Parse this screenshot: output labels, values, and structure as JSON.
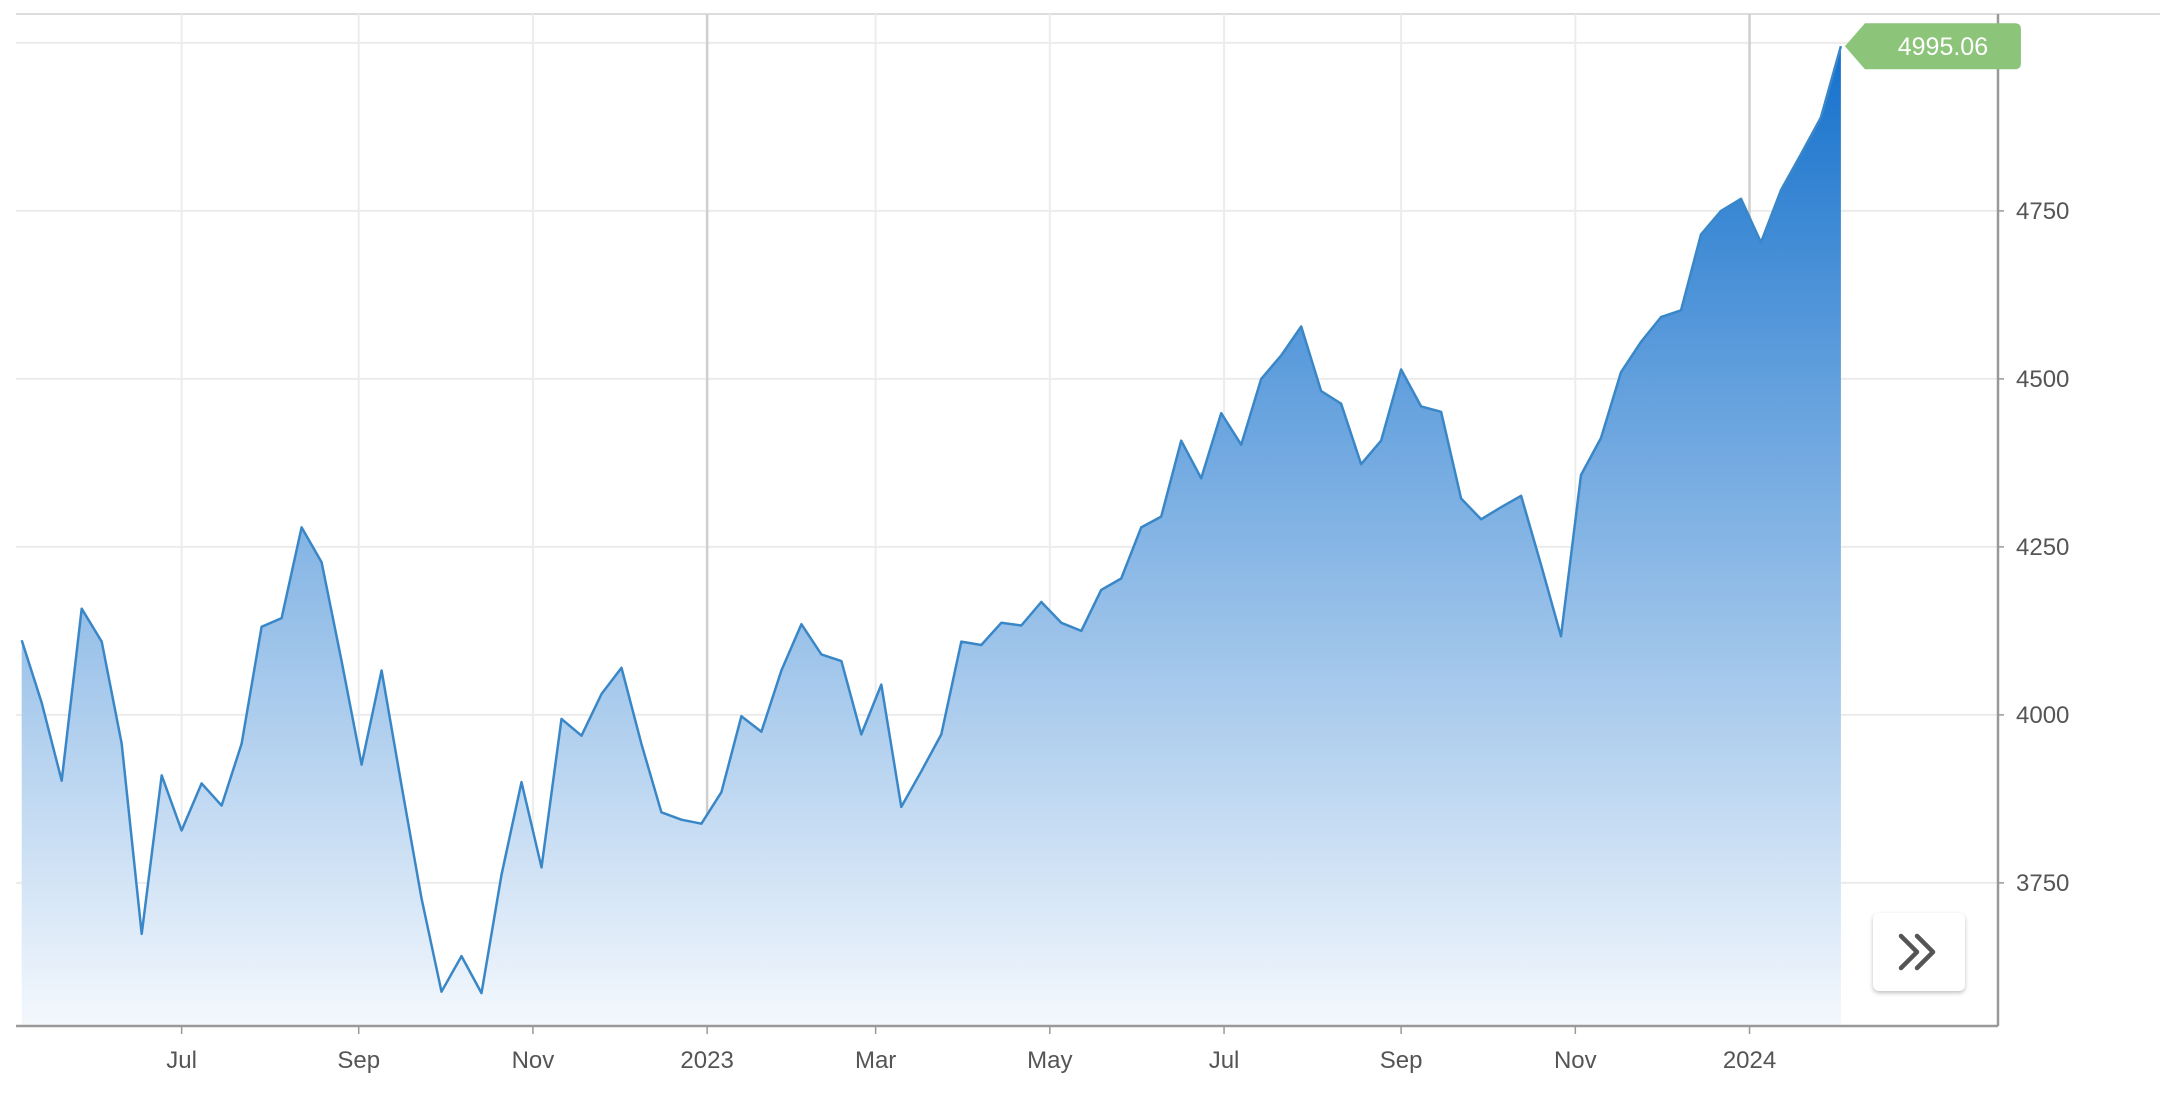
{
  "chart_data": {
    "type": "area",
    "title": "",
    "xlabel": "",
    "ylabel": "",
    "xlim": [
      "2022-05-04",
      "2024-03-28"
    ],
    "ylim": [
      3537,
      5043
    ],
    "grid": true,
    "y_axis_position": "right",
    "y_ticks": [
      3750,
      4000,
      4250,
      4500,
      4750,
      5000
    ],
    "y_tick_labels": [
      "3750",
      "4000",
      "4250",
      "4500",
      "4750",
      ""
    ],
    "x_ticks": [
      {
        "date": "2022-07-01",
        "label": "Jul"
      },
      {
        "date": "2022-09-01",
        "label": "Sep"
      },
      {
        "date": "2022-11-01",
        "label": "Nov"
      },
      {
        "date": "2023-01-01",
        "label": "2023"
      },
      {
        "date": "2023-03-01",
        "label": "Mar"
      },
      {
        "date": "2023-05-01",
        "label": "May"
      },
      {
        "date": "2023-07-01",
        "label": "Jul"
      },
      {
        "date": "2023-09-01",
        "label": "Sep"
      },
      {
        "date": "2023-11-01",
        "label": "Nov"
      },
      {
        "date": "2024-01-01",
        "label": "2024"
      }
    ],
    "last_value_label": "4995.06",
    "colors": {
      "line": "#3a87c8",
      "fill_top": "#1571cc",
      "fill_bottom": "#f4f8fd",
      "badge": "#8cc47a",
      "grid": "#ececec",
      "axis": "#999999"
    },
    "x": [
      "2022-05-06",
      "2022-05-13",
      "2022-05-20",
      "2022-05-27",
      "2022-06-03",
      "2022-06-10",
      "2022-06-17",
      "2022-06-24",
      "2022-07-01",
      "2022-07-08",
      "2022-07-15",
      "2022-07-22",
      "2022-07-29",
      "2022-08-05",
      "2022-08-12",
      "2022-08-19",
      "2022-08-26",
      "2022-09-02",
      "2022-09-09",
      "2022-09-16",
      "2022-09-23",
      "2022-09-30",
      "2022-10-07",
      "2022-10-14",
      "2022-10-21",
      "2022-10-28",
      "2022-11-04",
      "2022-11-11",
      "2022-11-18",
      "2022-11-25",
      "2022-12-02",
      "2022-12-09",
      "2022-12-16",
      "2022-12-23",
      "2022-12-30",
      "2023-01-06",
      "2023-01-13",
      "2023-01-20",
      "2023-01-27",
      "2023-02-03",
      "2023-02-10",
      "2023-02-17",
      "2023-02-24",
      "2023-03-03",
      "2023-03-10",
      "2023-03-17",
      "2023-03-24",
      "2023-03-31",
      "2023-04-07",
      "2023-04-14",
      "2023-04-21",
      "2023-04-28",
      "2023-05-05",
      "2023-05-12",
      "2023-05-19",
      "2023-05-26",
      "2023-06-02",
      "2023-06-09",
      "2023-06-16",
      "2023-06-23",
      "2023-06-30",
      "2023-07-07",
      "2023-07-14",
      "2023-07-21",
      "2023-07-28",
      "2023-08-04",
      "2023-08-11",
      "2023-08-18",
      "2023-08-25",
      "2023-09-01",
      "2023-09-08",
      "2023-09-15",
      "2023-09-22",
      "2023-09-29",
      "2023-10-06",
      "2023-10-13",
      "2023-10-20",
      "2023-10-27",
      "2023-11-03",
      "2023-11-10",
      "2023-11-17",
      "2023-11-24",
      "2023-12-01",
      "2023-12-08",
      "2023-12-15",
      "2023-12-22",
      "2023-12-29",
      "2024-01-05",
      "2024-01-12",
      "2024-01-19",
      "2024-01-26",
      "2024-02-02"
    ],
    "values": [
      4111,
      4018,
      3902,
      4158,
      4109,
      3957,
      3674,
      3910,
      3828,
      3898,
      3865,
      3957,
      4131,
      4144,
      4279,
      4227,
      4080,
      3926,
      4066,
      3895,
      3727,
      3588,
      3641,
      3586,
      3762,
      3900,
      3773,
      3994,
      3969,
      4031,
      4070,
      3957,
      3855,
      3844,
      3838,
      3885,
      3998,
      3975,
      4066,
      4135,
      4090,
      4080,
      3971,
      4045,
      3863,
      3916,
      3971,
      4109,
      4104,
      4137,
      4133,
      4168,
      4137,
      4125,
      4186,
      4203,
      4279,
      4295,
      4408,
      4352,
      4449,
      4402,
      4500,
      4535,
      4578,
      4482,
      4463,
      4373,
      4408,
      4514,
      4459,
      4451,
      4322,
      4291,
      4309,
      4326,
      4223,
      4117,
      4357,
      4412,
      4510,
      4555,
      4592,
      4602,
      4715,
      4750,
      4768,
      4703,
      4781,
      4834,
      4889,
      4995.06
    ]
  },
  "controls": {
    "scroll_button_icon": "double-chevron-right-icon"
  }
}
